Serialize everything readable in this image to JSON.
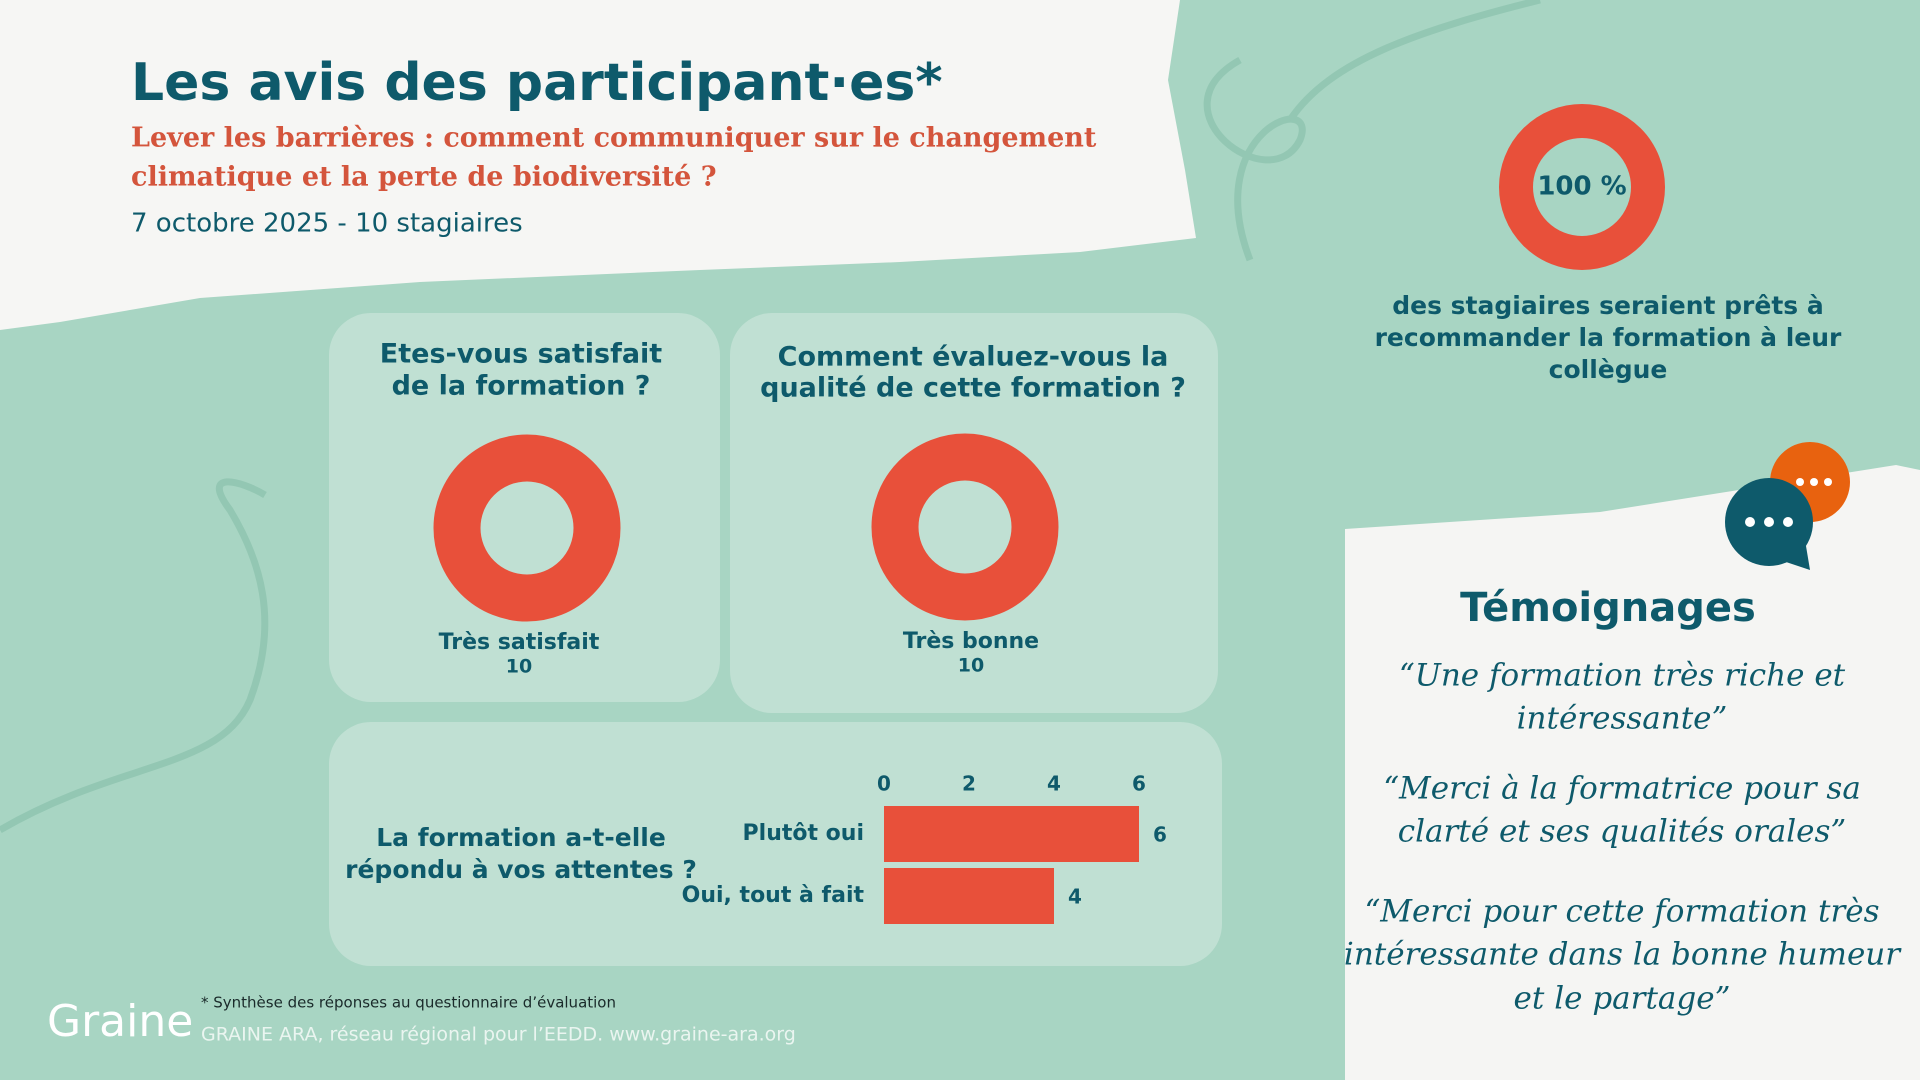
{
  "header": {
    "title": "Les avis des participant·es*",
    "subtitle_lines": [
      "Lever les barrières : comment communiquer sur le changement",
      "climatique et la perte de biodiversité ?"
    ],
    "date": "7 octobre 2025 -  10 stagiaires"
  },
  "chart_data": [
    {
      "type": "donut",
      "title": [
        "Etes-vous satisfait",
        "de la formation ?"
      ],
      "categories": [
        "Très satisfait"
      ],
      "values": [
        10
      ],
      "colors": [
        "#e8503a"
      ]
    },
    {
      "type": "donut",
      "title": [
        "Comment évaluez-vous la",
        "qualité de cette formation ?"
      ],
      "categories": [
        "Très bonne"
      ],
      "values": [
        10
      ],
      "colors": [
        "#e8503a"
      ]
    },
    {
      "type": "hbar",
      "title": [
        "La formation a-t-elle",
        "répondu à vos attentes ?"
      ],
      "categories": [
        "Plutôt oui",
        "Oui, tout à fait"
      ],
      "values": [
        6,
        4
      ],
      "color": "#e8503a",
      "xlim": [
        0,
        6
      ],
      "xticks": [
        0,
        2,
        4,
        6
      ],
      "grid": false
    },
    {
      "type": "donut",
      "values": [
        100
      ],
      "value_labels": [
        "100 %"
      ],
      "colors": [
        "#e8503a"
      ],
      "caption": [
        "des stagiaires seraient prêts à",
        "recommander la formation à leur",
        "collègue"
      ]
    }
  ],
  "testimonials": {
    "title": "Témoignages",
    "quotes": [
      [
        "“Une formation très riche et",
        "intéressante”"
      ],
      [
        "“Merci  à la formatrice pour sa",
        "clarté et ses qualités orales”"
      ],
      [
        "“Merci pour cette formation très",
        "intéressante dans la bonne humeur",
        "et le partage”"
      ]
    ]
  },
  "footer": {
    "logo": "Graine",
    "note": "* Synthèse des réponses au questionnaire d’évaluation",
    "credit": "GRAINE ARA, réseau régional pour l’EEDD. www.graine-ara.org"
  }
}
